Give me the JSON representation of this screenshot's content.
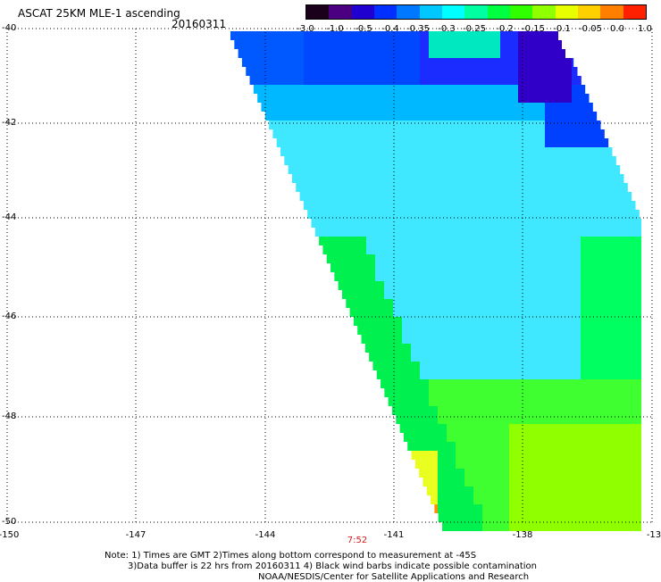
{
  "title": "ASCAT 25KM MLE-1 ascending",
  "date": "20160311",
  "colorbar": {
    "colors": [
      "#1a001a",
      "#4b0082",
      "#2000d0",
      "#0030ff",
      "#0078ff",
      "#00c8ff",
      "#00ffff",
      "#00ffa0",
      "#00ff40",
      "#30ff00",
      "#90ff00",
      "#e8ff00",
      "#ffd000",
      "#ff8000",
      "#ff2000"
    ],
    "labels": [
      "-3.0",
      "-1.0",
      "-0.5",
      "-0.4",
      "-0.35",
      "-0.3",
      "-0.25",
      "-0.2",
      "-0.15",
      "-0.1",
      "-0.05",
      "0.0",
      "1.0"
    ]
  },
  "map": {
    "lat_labels": [
      "-40",
      "-42",
      "-44",
      "-46",
      "-48",
      "-50"
    ],
    "lon_labels": [
      "-150",
      "-147",
      "-144",
      "-141",
      "-138",
      "-13"
    ],
    "time_label": "7:52"
  },
  "notes": [
    "Note: 1) Times are GMT 2)Times along bottom correspond to measurement at -45S",
    "3)Data buffer is 22 hrs from 20160311 4) Black wind barbs indicate possible contamination",
    "NOAA/NESDIS/Center for Satellite Applications and Research"
  ]
}
